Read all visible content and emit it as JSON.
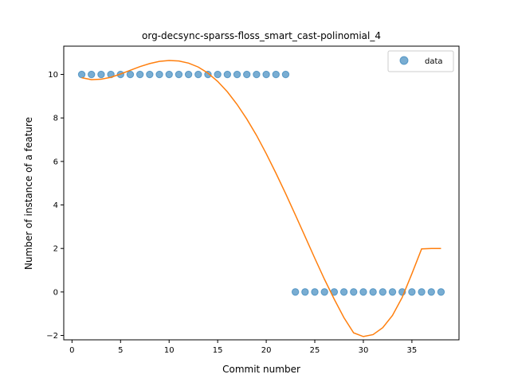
{
  "chart_data": {
    "type": "scatter",
    "title": "org-decsync-sparss-floss_smart_cast-polinomial_4",
    "xlabel": "Commit number",
    "ylabel": "Number of instance of a feature",
    "xlim": [
      -0.85,
      39.85
    ],
    "ylim": [
      -2.2,
      11.3
    ],
    "xticks": [
      0,
      5,
      10,
      15,
      20,
      25,
      30,
      35
    ],
    "yticks": [
      -2,
      0,
      2,
      4,
      6,
      8,
      10
    ],
    "legend_position": "top-right",
    "grid": false,
    "series": [
      {
        "name": "data",
        "kind": "scatter",
        "color": "#1f77b4",
        "x": [
          1,
          2,
          3,
          4,
          5,
          6,
          7,
          8,
          9,
          10,
          11,
          12,
          13,
          14,
          15,
          16,
          17,
          18,
          19,
          20,
          21,
          22,
          23,
          24,
          25,
          26,
          27,
          28,
          29,
          30,
          31,
          32,
          33,
          34,
          35,
          36,
          37,
          38
        ],
        "y": [
          10,
          10,
          10,
          10,
          10,
          10,
          10,
          10,
          10,
          10,
          10,
          10,
          10,
          10,
          10,
          10,
          10,
          10,
          10,
          10,
          10,
          10,
          0,
          0,
          0,
          0,
          0,
          0,
          0,
          0,
          0,
          0,
          0,
          0,
          0,
          0,
          0,
          0
        ]
      },
      {
        "kind": "line",
        "color": "#ff7f0e",
        "x": [
          1,
          2,
          3,
          4,
          5,
          6,
          7,
          8,
          9,
          10,
          11,
          12,
          13,
          14,
          15,
          16,
          17,
          18,
          19,
          20,
          21,
          22,
          23,
          24,
          25,
          26,
          27,
          28,
          29,
          30,
          31,
          32,
          33,
          34,
          35,
          36,
          37,
          38
        ],
        "y": [
          9.85,
          9.76,
          9.78,
          9.87,
          10.02,
          10.19,
          10.36,
          10.5,
          10.6,
          10.64,
          10.62,
          10.52,
          10.34,
          10.06,
          9.68,
          9.2,
          8.62,
          7.95,
          7.2,
          6.36,
          5.46,
          4.52,
          3.54,
          2.55,
          1.55,
          0.58,
          -0.33,
          -1.18,
          -1.88,
          -2.05,
          -1.96,
          -1.64,
          -1.08,
          -0.25,
          0.84,
          1.98,
          2.0,
          2.0
        ]
      }
    ]
  }
}
